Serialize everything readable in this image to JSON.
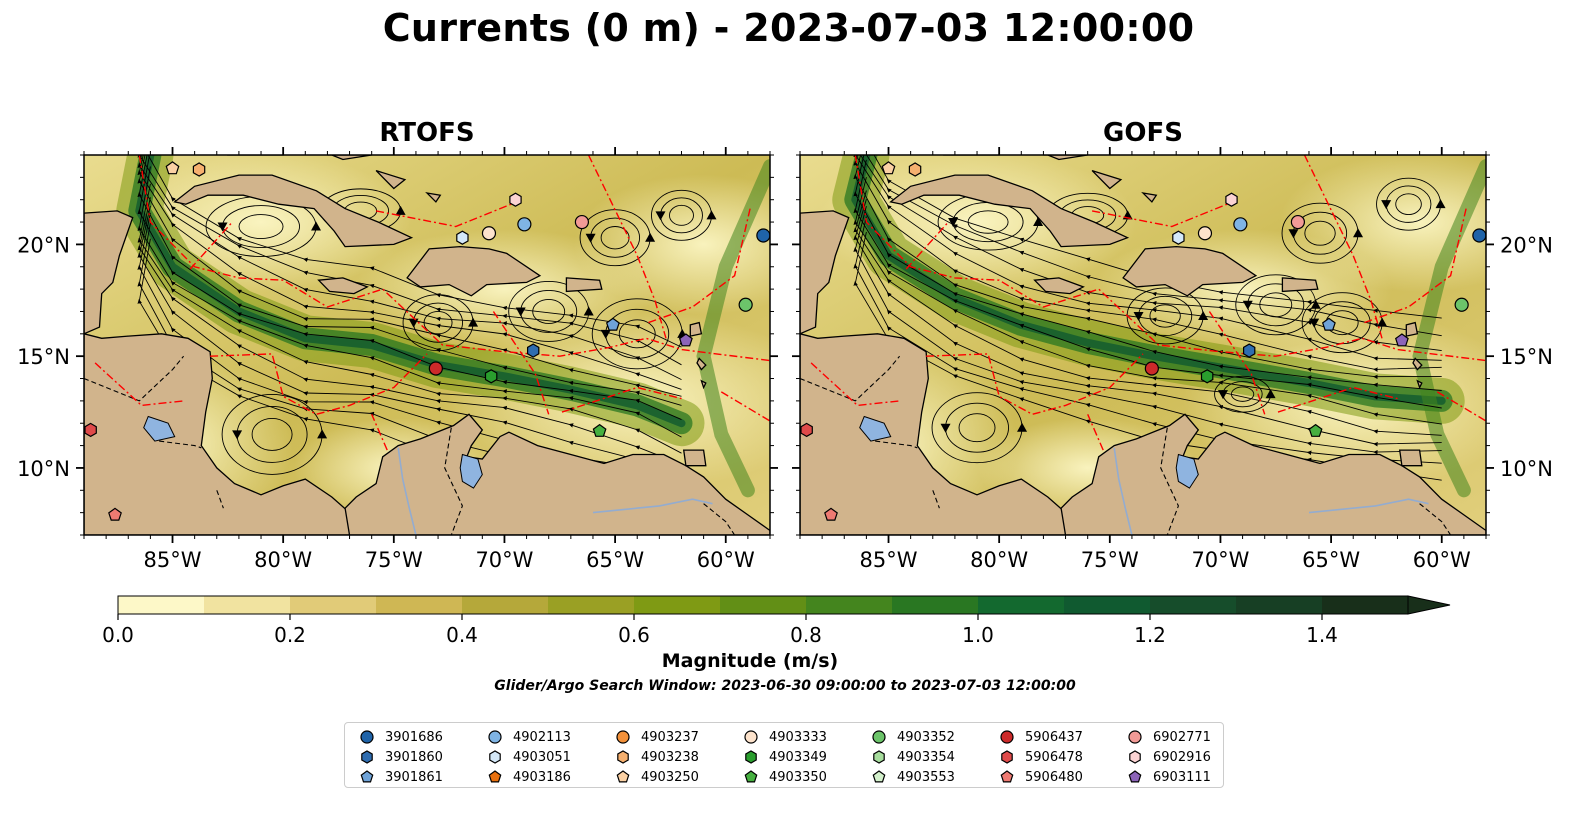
{
  "title": "Currents (0 m) - 2023-07-03 12:00:00",
  "panels": [
    {
      "title": "RTOFS"
    },
    {
      "title": "GOFS"
    }
  ],
  "axes": {
    "lon_ticks": [
      "85°W",
      "80°W",
      "75°W",
      "70°W",
      "65°W",
      "60°W"
    ],
    "lat_ticks": [
      "20°N",
      "15°N",
      "10°N"
    ],
    "lon_range": [
      -89,
      -58
    ],
    "lat_range": [
      7,
      24
    ]
  },
  "colorbar": {
    "label": "Magnitude (m/s)",
    "ticks": [
      "0.0",
      "0.2",
      "0.4",
      "0.6",
      "0.8",
      "1.0",
      "1.2",
      "1.4"
    ],
    "range": [
      0,
      1.5
    ],
    "extend": "max",
    "colors": [
      "#fdf8c8",
      "#f1e3a0",
      "#e1cb78",
      "#cfb754",
      "#b5a83a",
      "#9aa024",
      "#7f9a14",
      "#628f16",
      "#44851e",
      "#297722",
      "#13692f",
      "#105a30",
      "#164d2b",
      "#173f24",
      "#182f1a"
    ]
  },
  "search_window": "Glider/Argo Search Window: 2023-06-30 09:00:00 to 2023-07-03 12:00:00",
  "legend": [
    {
      "label": "3901686",
      "marker": "circle",
      "color": "#1f63a8"
    },
    {
      "label": "3901860",
      "marker": "hexagon",
      "color": "#2f6db0"
    },
    {
      "label": "3901861",
      "marker": "pentagon",
      "color": "#6fa3d8"
    },
    {
      "label": "4902113",
      "marker": "circle",
      "color": "#7fb4e4"
    },
    {
      "label": "4903051",
      "marker": "hexagon",
      "color": "#d4e8f8"
    },
    {
      "label": "4903186",
      "marker": "pentagon",
      "color": "#e8700e"
    },
    {
      "label": "4903237",
      "marker": "circle",
      "color": "#f3913a"
    },
    {
      "label": "4903238",
      "marker": "hexagon",
      "color": "#f6b06f"
    },
    {
      "label": "4903250",
      "marker": "pentagon",
      "color": "#fbd1a4"
    },
    {
      "label": "4903333",
      "marker": "circle",
      "color": "#fde3cc"
    },
    {
      "label": "4903349",
      "marker": "hexagon",
      "color": "#2a9e2e"
    },
    {
      "label": "4903350",
      "marker": "pentagon",
      "color": "#46b040"
    },
    {
      "label": "4903352",
      "marker": "circle",
      "color": "#6cc46a"
    },
    {
      "label": "4903354",
      "marker": "hexagon",
      "color": "#a7dd9d"
    },
    {
      "label": "4903553",
      "marker": "pentagon",
      "color": "#d3f0cb"
    },
    {
      "label": "5906437",
      "marker": "circle",
      "color": "#cc2a2a"
    },
    {
      "label": "5906478",
      "marker": "hexagon",
      "color": "#df4a4a"
    },
    {
      "label": "5906480",
      "marker": "pentagon",
      "color": "#ee7a72"
    },
    {
      "label": "6902771",
      "marker": "circle",
      "color": "#f29a96"
    },
    {
      "label": "6902916",
      "marker": "hexagon",
      "color": "#fbd3d3"
    },
    {
      "label": "6903111",
      "marker": "pentagon",
      "color": "#8c64b8"
    }
  ],
  "floats": [
    {
      "id": "3901686",
      "lon": -58.3,
      "lat": 20.4
    },
    {
      "id": "4903250",
      "lon": -85.0,
      "lat": 23.4
    },
    {
      "id": "4903238",
      "lon": -83.8,
      "lat": 23.35
    },
    {
      "id": "6902916",
      "lon": -69.5,
      "lat": 22.0
    },
    {
      "id": "4902113",
      "lon": -69.1,
      "lat": 20.9
    },
    {
      "id": "6902771",
      "lon": -66.5,
      "lat": 21.0
    },
    {
      "id": "4903051",
      "lon": -71.9,
      "lat": 20.3
    },
    {
      "id": "4903333",
      "lon": -70.7,
      "lat": 20.5
    },
    {
      "id": "4903352",
      "lon": -59.1,
      "lat": 17.3
    },
    {
      "id": "3901861",
      "lon": -65.1,
      "lat": 16.4
    },
    {
      "id": "6903111",
      "lon": -61.8,
      "lat": 15.7
    },
    {
      "id": "3901860",
      "lon": -68.7,
      "lat": 15.25
    },
    {
      "id": "5906437",
      "lon": -73.1,
      "lat": 14.45
    },
    {
      "id": "4903349",
      "lon": -70.6,
      "lat": 14.1
    },
    {
      "id": "4903350",
      "lon": -65.7,
      "lat": 11.65
    },
    {
      "id": "5906478",
      "lon": -88.7,
      "lat": 11.7
    },
    {
      "id": "5906480",
      "lon": -87.6,
      "lat": 7.9
    }
  ],
  "map_colors": {
    "land": "#d1b48c",
    "lake": "#8fb4e0",
    "eez": "#ff0000",
    "ocean_low": "#fdf8c8"
  }
}
